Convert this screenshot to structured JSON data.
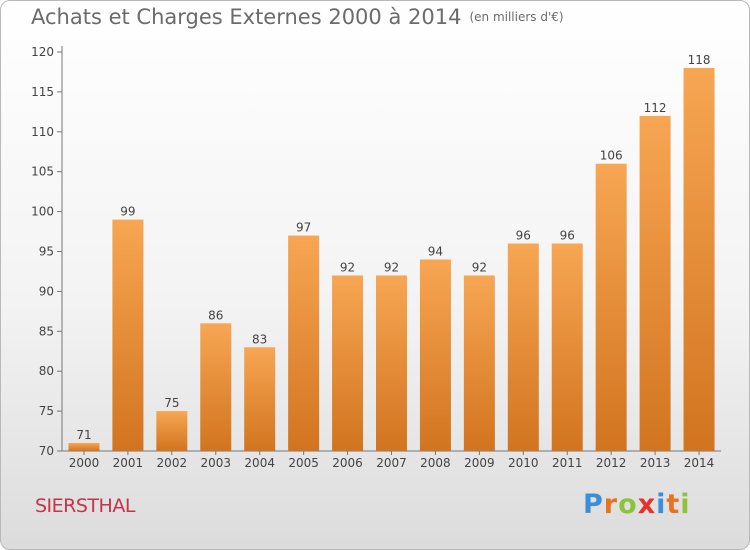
{
  "chart_data": {
    "type": "bar",
    "title": "Achats et Charges Externes 2000 à 2014",
    "unit": "(en milliers d'€)",
    "categories": [
      "2000",
      "2001",
      "2002",
      "2003",
      "2004",
      "2005",
      "2006",
      "2007",
      "2008",
      "2009",
      "2010",
      "2011",
      "2012",
      "2013",
      "2014"
    ],
    "values": [
      71,
      99,
      75,
      86,
      83,
      97,
      92,
      92,
      94,
      92,
      96,
      96,
      106,
      112,
      118
    ],
    "ylim": [
      70,
      120
    ],
    "yticks": [
      70,
      75,
      80,
      85,
      90,
      95,
      100,
      105,
      110,
      115,
      120
    ],
    "grid": false,
    "bar_color_top": "#f7a653",
    "bar_color_bottom": "#d2741f"
  },
  "footer": {
    "location": "SIERSTHAL",
    "logo": {
      "letters": [
        "P",
        "r",
        "o",
        "x",
        "i",
        "t",
        "i"
      ],
      "colors": [
        "#3a8fd8",
        "#e8731e",
        "#8bc43c",
        "#e8302a",
        "#3a8fd8",
        "#e8731e",
        "#8bc43c"
      ]
    }
  }
}
